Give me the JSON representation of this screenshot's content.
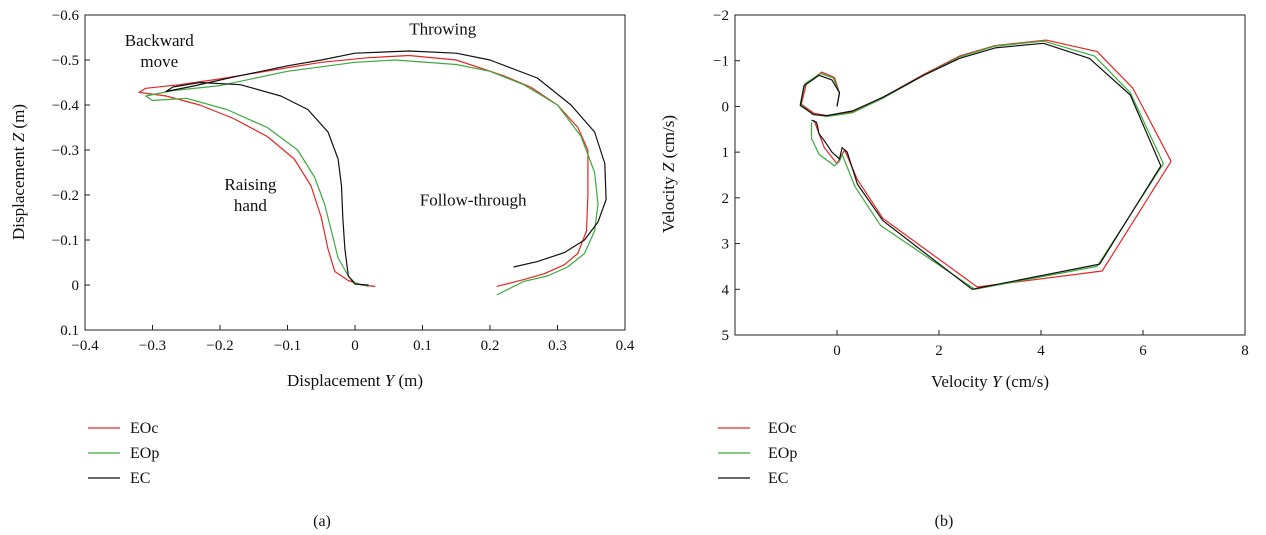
{
  "colors": {
    "EOc": "#e32626",
    "EOp": "#3daa3d",
    "EC": "#111111",
    "frame": "#222222"
  },
  "chart_data": [
    {
      "type": "line",
      "panel_label": "(a)",
      "xlabel_pre": "Displacement ",
      "xlabel_var": "Y",
      "xlabel_post": " (m)",
      "ylabel_pre": "Displacement ",
      "ylabel_var": "Z",
      "ylabel_post": " (m)",
      "xlim": [
        -0.4,
        0.4
      ],
      "ylim": [
        -0.6,
        0.1
      ],
      "y_inverted": true,
      "grid": false,
      "xticks": [
        -0.4,
        -0.3,
        -0.2,
        -0.1,
        0,
        0.1,
        0.2,
        0.3,
        0.4
      ],
      "xtick_labels": [
        "−0.4",
        "−0.3",
        "−0.2",
        "−0.1",
        "0",
        "0.1",
        "0.2",
        "0.3",
        "0.4"
      ],
      "yticks": [
        -0.6,
        -0.5,
        -0.4,
        -0.3,
        -0.2,
        -0.1,
        0,
        0.1
      ],
      "ytick_labels": [
        "−0.6",
        "−0.5",
        "−0.4",
        "−0.3",
        "−0.2",
        "−0.1",
        "0",
        "0.1"
      ],
      "annotations": [
        {
          "text": "Throwing",
          "x": 0.13,
          "y": -0.57
        },
        {
          "text": "Backward",
          "x": -0.29,
          "y": -0.545
        },
        {
          "text": "move",
          "x": -0.29,
          "y": -0.498
        },
        {
          "text": "Raising",
          "x": -0.155,
          "y": -0.225
        },
        {
          "text": "hand",
          "x": -0.155,
          "y": -0.178
        },
        {
          "text": "Follow-through",
          "x": 0.175,
          "y": -0.19
        }
      ],
      "legend_position": "below",
      "series": [
        {
          "name": "EOc",
          "color_key": "EOc",
          "points": [
            [
              0.03,
              0.003
            ],
            [
              0.01,
              0.0
            ],
            [
              -0.01,
              -0.01
            ],
            [
              -0.03,
              -0.03
            ],
            [
              -0.04,
              -0.08
            ],
            [
              -0.05,
              -0.15
            ],
            [
              -0.065,
              -0.22
            ],
            [
              -0.09,
              -0.28
            ],
            [
              -0.13,
              -0.33
            ],
            [
              -0.18,
              -0.37
            ],
            [
              -0.23,
              -0.4
            ],
            [
              -0.28,
              -0.42
            ],
            [
              -0.32,
              -0.428
            ],
            [
              -0.31,
              -0.437
            ],
            [
              -0.26,
              -0.445
            ],
            [
              -0.2,
              -0.458
            ],
            [
              -0.12,
              -0.478
            ],
            [
              -0.05,
              -0.495
            ],
            [
              0.02,
              -0.505
            ],
            [
              0.08,
              -0.51
            ],
            [
              0.15,
              -0.5
            ],
            [
              0.22,
              -0.465
            ],
            [
              0.26,
              -0.44
            ],
            [
              0.3,
              -0.4
            ],
            [
              0.33,
              -0.35
            ],
            [
              0.345,
              -0.3
            ],
            [
              0.345,
              -0.2
            ],
            [
              0.343,
              -0.12
            ],
            [
              0.33,
              -0.07
            ],
            [
              0.31,
              -0.045
            ],
            [
              0.28,
              -0.025
            ],
            [
              0.25,
              -0.012
            ],
            [
              0.21,
              0.003
            ]
          ]
        },
        {
          "name": "EOp",
          "color_key": "EOp",
          "points": [
            [
              0.02,
              0.003
            ],
            [
              0.0,
              -0.005
            ],
            [
              -0.01,
              -0.02
            ],
            [
              -0.025,
              -0.06
            ],
            [
              -0.035,
              -0.12
            ],
            [
              -0.045,
              -0.18
            ],
            [
              -0.06,
              -0.24
            ],
            [
              -0.085,
              -0.3
            ],
            [
              -0.13,
              -0.35
            ],
            [
              -0.19,
              -0.39
            ],
            [
              -0.25,
              -0.415
            ],
            [
              -0.3,
              -0.41
            ],
            [
              -0.31,
              -0.42
            ],
            [
              -0.27,
              -0.432
            ],
            [
              -0.2,
              -0.443
            ],
            [
              -0.1,
              -0.475
            ],
            [
              -0.05,
              -0.485
            ],
            [
              0.0,
              -0.495
            ],
            [
              0.06,
              -0.5
            ],
            [
              0.15,
              -0.49
            ],
            [
              0.2,
              -0.475
            ],
            [
              0.25,
              -0.445
            ],
            [
              0.3,
              -0.4
            ],
            [
              0.335,
              -0.33
            ],
            [
              0.355,
              -0.25
            ],
            [
              0.36,
              -0.18
            ],
            [
              0.355,
              -0.12
            ],
            [
              0.34,
              -0.07
            ],
            [
              0.315,
              -0.04
            ],
            [
              0.285,
              -0.02
            ],
            [
              0.25,
              -0.008
            ],
            [
              0.21,
              0.022
            ]
          ]
        },
        {
          "name": "EC",
          "color_key": "EC",
          "points": [
            [
              0.02,
              0.0
            ],
            [
              0.0,
              -0.002
            ],
            [
              -0.01,
              -0.02
            ],
            [
              -0.015,
              -0.08
            ],
            [
              -0.018,
              -0.15
            ],
            [
              -0.02,
              -0.22
            ],
            [
              -0.025,
              -0.28
            ],
            [
              -0.04,
              -0.34
            ],
            [
              -0.07,
              -0.39
            ],
            [
              -0.11,
              -0.42
            ],
            [
              -0.17,
              -0.445
            ],
            [
              -0.23,
              -0.45
            ],
            [
              -0.27,
              -0.44
            ],
            [
              -0.28,
              -0.43
            ],
            [
              -0.24,
              -0.442
            ],
            [
              -0.18,
              -0.462
            ],
            [
              -0.1,
              -0.487
            ],
            [
              -0.05,
              -0.5
            ],
            [
              0.0,
              -0.515
            ],
            [
              0.08,
              -0.52
            ],
            [
              0.15,
              -0.515
            ],
            [
              0.2,
              -0.5
            ],
            [
              0.27,
              -0.46
            ],
            [
              0.32,
              -0.4
            ],
            [
              0.355,
              -0.34
            ],
            [
              0.37,
              -0.27
            ],
            [
              0.372,
              -0.19
            ],
            [
              0.36,
              -0.14
            ],
            [
              0.34,
              -0.1
            ],
            [
              0.31,
              -0.072
            ],
            [
              0.27,
              -0.052
            ],
            [
              0.235,
              -0.04
            ]
          ]
        }
      ]
    },
    {
      "type": "line",
      "panel_label": "(b)",
      "xlabel_pre": "Velocity ",
      "xlabel_var": "Y",
      "xlabel_post": " (cm/s)",
      "ylabel_pre": "Velocity ",
      "ylabel_var": "Z",
      "ylabel_post": " (cm/s)",
      "xlim": [
        -2,
        8
      ],
      "ylim": [
        -2,
        5
      ],
      "y_inverted": true,
      "grid": false,
      "xticks": [
        0,
        2,
        4,
        6,
        8
      ],
      "xtick_labels": [
        "0",
        "2",
        "4",
        "6",
        "8"
      ],
      "yticks": [
        -2,
        -1,
        0,
        1,
        2,
        3,
        4,
        5
      ],
      "ytick_labels": [
        "−2",
        "−1",
        "0",
        "1",
        "2",
        "3",
        "4",
        "5"
      ],
      "annotations": [],
      "legend_position": "below",
      "series": [
        {
          "name": "EOc",
          "color_key": "EOc",
          "points": [
            [
              0.0,
              0.0
            ],
            [
              0.05,
              -0.3
            ],
            [
              -0.05,
              -0.63
            ],
            [
              -0.3,
              -0.75
            ],
            [
              -0.6,
              -0.5
            ],
            [
              -0.7,
              -0.05
            ],
            [
              -0.45,
              0.15
            ],
            [
              -0.2,
              0.2
            ],
            [
              0.3,
              0.12
            ],
            [
              0.9,
              -0.2
            ],
            [
              1.7,
              -0.7
            ],
            [
              2.4,
              -1.1
            ],
            [
              3.1,
              -1.33
            ],
            [
              4.1,
              -1.45
            ],
            [
              5.1,
              -1.2
            ],
            [
              5.8,
              -0.4
            ],
            [
              6.55,
              1.2
            ],
            [
              5.2,
              3.6
            ],
            [
              2.75,
              3.95
            ],
            [
              0.9,
              2.45
            ],
            [
              0.4,
              1.6
            ],
            [
              0.15,
              0.95
            ],
            [
              0.05,
              1.15
            ],
            [
              0.0,
              1.25
            ],
            [
              -0.25,
              0.9
            ],
            [
              -0.35,
              0.6
            ],
            [
              -0.45,
              0.3
            ]
          ]
        },
        {
          "name": "EOp",
          "color_key": "EOp",
          "points": [
            [
              0.0,
              0.0
            ],
            [
              0.05,
              -0.3
            ],
            [
              -0.07,
              -0.62
            ],
            [
              -0.32,
              -0.72
            ],
            [
              -0.63,
              -0.5
            ],
            [
              -0.72,
              -0.05
            ],
            [
              -0.48,
              0.17
            ],
            [
              -0.2,
              0.22
            ],
            [
              0.3,
              0.14
            ],
            [
              0.9,
              -0.18
            ],
            [
              1.7,
              -0.68
            ],
            [
              2.4,
              -1.08
            ],
            [
              3.1,
              -1.32
            ],
            [
              4.05,
              -1.43
            ],
            [
              5.05,
              -1.1
            ],
            [
              5.75,
              -0.3
            ],
            [
              6.4,
              1.25
            ],
            [
              5.1,
              3.5
            ],
            [
              2.7,
              4.0
            ],
            [
              0.85,
              2.6
            ],
            [
              0.35,
              1.75
            ],
            [
              0.1,
              1.05
            ],
            [
              0.05,
              1.2
            ],
            [
              -0.05,
              1.3
            ],
            [
              -0.35,
              1.05
            ],
            [
              -0.5,
              0.7
            ],
            [
              -0.5,
              0.35
            ]
          ]
        },
        {
          "name": "EC",
          "color_key": "EC",
          "points": [
            [
              0.0,
              0.0
            ],
            [
              0.05,
              -0.3
            ],
            [
              -0.1,
              -0.58
            ],
            [
              -0.35,
              -0.68
            ],
            [
              -0.65,
              -0.45
            ],
            [
              -0.72,
              -0.02
            ],
            [
              -0.45,
              0.18
            ],
            [
              -0.2,
              0.2
            ],
            [
              0.3,
              0.1
            ],
            [
              0.9,
              -0.2
            ],
            [
              1.7,
              -0.68
            ],
            [
              2.4,
              -1.05
            ],
            [
              3.1,
              -1.28
            ],
            [
              4.05,
              -1.38
            ],
            [
              4.95,
              -1.05
            ],
            [
              5.75,
              -0.25
            ],
            [
              6.35,
              1.3
            ],
            [
              5.15,
              3.45
            ],
            [
              2.65,
              4.0
            ],
            [
              0.9,
              2.5
            ],
            [
              0.4,
              1.7
            ],
            [
              0.2,
              1.0
            ],
            [
              0.1,
              0.9
            ],
            [
              0.05,
              1.15
            ],
            [
              -0.1,
              1.0
            ],
            [
              -0.25,
              0.75
            ],
            [
              -0.35,
              0.6
            ],
            [
              -0.4,
              0.35
            ],
            [
              -0.5,
              0.3
            ]
          ]
        }
      ]
    }
  ]
}
